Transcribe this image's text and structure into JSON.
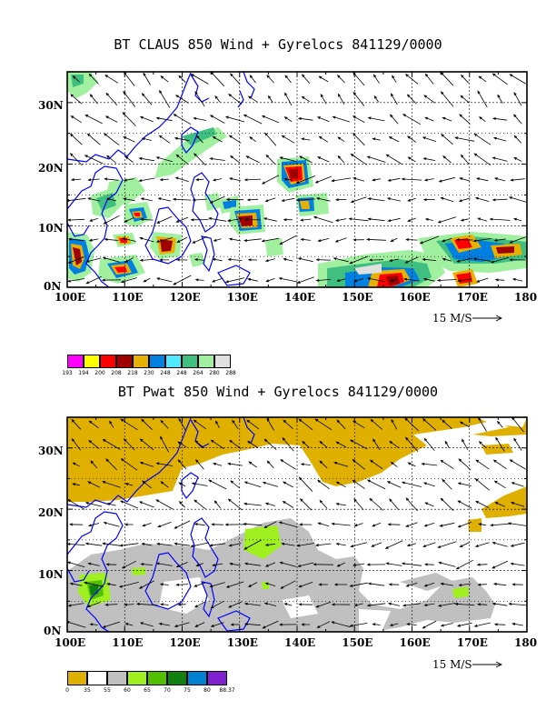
{
  "maps": [
    {
      "title": "BT CLAUS 850 Wind + Gyrelocs 841129/0000",
      "lon_labels": [
        "100E",
        "110E",
        "120E",
        "130E",
        "140E",
        "150E",
        "160E",
        "170E",
        "180"
      ],
      "lat_labels": [
        "30N",
        "20N",
        "10N",
        "0N"
      ],
      "vector_scale_label": "15 M/S",
      "legend": {
        "colors": [
          "#ff00ff",
          "#ffff00",
          "#ff0000",
          "#a00000",
          "#e8b000",
          "#0080e0",
          "#50e8ff",
          "#40c080",
          "#a0f0a0",
          "#e0e0e0"
        ],
        "labels": [
          "193",
          "194",
          "200",
          "208",
          "218",
          "230",
          "248",
          "248",
          "264",
          "280",
          "288"
        ]
      }
    },
    {
      "title": "BT Pwat 850 Wind + Gyrelocs 841129/0000",
      "lon_labels": [
        "100E",
        "110E",
        "120E",
        "130E",
        "140E",
        "150E",
        "160E",
        "170E",
        "180"
      ],
      "lat_labels": [
        "30N",
        "20N",
        "10N",
        "0N"
      ],
      "vector_scale_label": "15 M/S",
      "legend": {
        "colors": [
          "#e0b000",
          "#ffffff",
          "#c0c0c0",
          "#a0f020",
          "#50c000",
          "#108010",
          "#0080d0",
          "#8020d0"
        ],
        "labels": [
          "0",
          "35",
          "55",
          "60",
          "65",
          "70",
          "75",
          "80",
          "88.37"
        ]
      }
    }
  ]
}
